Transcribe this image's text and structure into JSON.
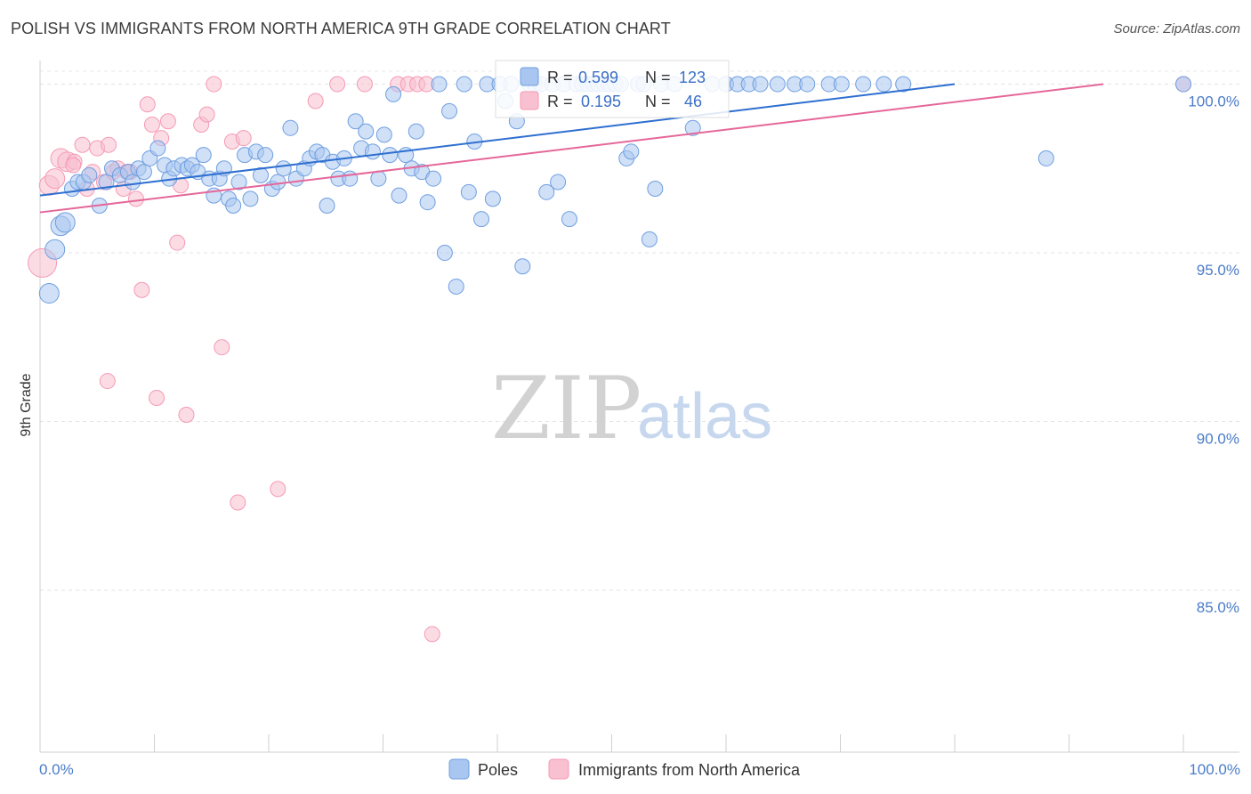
{
  "title": "POLISH VS IMMIGRANTS FROM NORTH AMERICA 9TH GRADE CORRELATION CHART",
  "source": "Source: ZipAtlas.com",
  "watermark": {
    "zip": "ZIP",
    "atlas": "atlas"
  },
  "colors": {
    "poles": "#6f9fe0",
    "immigrants": "#f59ab4",
    "poles_line": "#2e6fd0",
    "immigrants_line": "#e5679a",
    "axis_text": "#4a7cc9"
  },
  "stats": {
    "r_label": "R =",
    "n_label": "N =",
    "poles": {
      "r": "0.599",
      "n": "123"
    },
    "immigrants": {
      "r": "0.195",
      "n": "46"
    }
  },
  "chart_data": {
    "type": "scatter",
    "title": "POLISH VS IMMIGRANTS FROM NORTH AMERICA 9TH GRADE CORRELATION CHART",
    "ylabel": "9th Grade",
    "xlabel": "",
    "x_tick_labels": {
      "min": "0.0%",
      "max": "100.0%"
    },
    "y_tick_labels": [
      "100.0%",
      "95.0%",
      "90.0%",
      "85.0%"
    ],
    "y_ticks": [
      100,
      95,
      90,
      85
    ],
    "xlim": [
      0,
      100
    ],
    "ylim": [
      80.2,
      100.7
    ],
    "grid": true,
    "legend_placement": "bottom-center",
    "series": [
      {
        "name": "Poles",
        "trend": {
          "x0": 0,
          "y0": 96.7,
          "x1": 80,
          "y1": 100
        },
        "points": [
          [
            0.8,
            93.8
          ],
          [
            1.3,
            95.1
          ],
          [
            1.8,
            95.8
          ],
          [
            2.2,
            95.9
          ],
          [
            2.8,
            96.9
          ],
          [
            3.3,
            97.1
          ],
          [
            3.8,
            97.1
          ],
          [
            4.3,
            97.3
          ],
          [
            5.2,
            96.4
          ],
          [
            5.8,
            97.1
          ],
          [
            6.3,
            97.5
          ],
          [
            7.0,
            97.3
          ],
          [
            7.7,
            97.4
          ],
          [
            8.1,
            97.1
          ],
          [
            8.6,
            97.5
          ],
          [
            9.1,
            97.4
          ],
          [
            9.6,
            97.8
          ],
          [
            10.3,
            98.1
          ],
          [
            10.9,
            97.6
          ],
          [
            11.3,
            97.2
          ],
          [
            11.7,
            97.5
          ],
          [
            12.4,
            97.6
          ],
          [
            12.9,
            97.5
          ],
          [
            13.3,
            97.6
          ],
          [
            13.8,
            97.4
          ],
          [
            14.3,
            97.9
          ],
          [
            14.8,
            97.2
          ],
          [
            15.2,
            96.7
          ],
          [
            15.7,
            97.2
          ],
          [
            16.1,
            97.5
          ],
          [
            16.5,
            96.6
          ],
          [
            16.9,
            96.4
          ],
          [
            17.4,
            97.1
          ],
          [
            17.9,
            97.9
          ],
          [
            18.4,
            96.6
          ],
          [
            18.9,
            98.0
          ],
          [
            19.3,
            97.3
          ],
          [
            19.7,
            97.9
          ],
          [
            20.3,
            96.9
          ],
          [
            20.8,
            97.1
          ],
          [
            21.3,
            97.5
          ],
          [
            21.9,
            98.7
          ],
          [
            22.4,
            97.2
          ],
          [
            23.1,
            97.5
          ],
          [
            23.6,
            97.8
          ],
          [
            24.2,
            98.0
          ],
          [
            24.7,
            97.9
          ],
          [
            25.1,
            96.4
          ],
          [
            25.6,
            97.7
          ],
          [
            26.1,
            97.2
          ],
          [
            26.6,
            97.8
          ],
          [
            27.1,
            97.2
          ],
          [
            27.6,
            98.9
          ],
          [
            28.1,
            98.1
          ],
          [
            28.5,
            98.6
          ],
          [
            29.1,
            98.0
          ],
          [
            29.6,
            97.2
          ],
          [
            30.1,
            98.5
          ],
          [
            30.6,
            97.9
          ],
          [
            30.9,
            99.7
          ],
          [
            31.4,
            96.7
          ],
          [
            32.0,
            97.9
          ],
          [
            32.5,
            97.5
          ],
          [
            32.9,
            98.6
          ],
          [
            33.4,
            97.4
          ],
          [
            33.9,
            96.5
          ],
          [
            34.4,
            97.2
          ],
          [
            34.9,
            100.0
          ],
          [
            35.4,
            95.0
          ],
          [
            35.8,
            99.2
          ],
          [
            36.4,
            94.0
          ],
          [
            37.1,
            100.0
          ],
          [
            37.5,
            96.8
          ],
          [
            38.0,
            98.3
          ],
          [
            38.6,
            96.0
          ],
          [
            39.1,
            100.0
          ],
          [
            39.6,
            96.6
          ],
          [
            40.2,
            100.0
          ],
          [
            40.7,
            99.5
          ],
          [
            41.2,
            100.0
          ],
          [
            41.7,
            98.9
          ],
          [
            42.2,
            94.6
          ],
          [
            42.8,
            100.0
          ],
          [
            43.3,
            100.0
          ],
          [
            43.8,
            100.0
          ],
          [
            44.3,
            96.8
          ],
          [
            44.8,
            100.0
          ],
          [
            45.3,
            97.1
          ],
          [
            45.8,
            100.0
          ],
          [
            46.3,
            96.0
          ],
          [
            46.9,
            100.0
          ],
          [
            47.4,
            100.0
          ],
          [
            47.9,
            100.0
          ],
          [
            48.4,
            100.0
          ],
          [
            48.8,
            100.0
          ],
          [
            49.3,
            100.0
          ],
          [
            49.8,
            100.0
          ],
          [
            50.3,
            100.0
          ],
          [
            50.8,
            100.0
          ],
          [
            51.3,
            97.8
          ],
          [
            51.7,
            98.0
          ],
          [
            52.3,
            100.0
          ],
          [
            52.8,
            100.0
          ],
          [
            53.3,
            95.4
          ],
          [
            53.8,
            96.9
          ],
          [
            54.3,
            100.0
          ],
          [
            55.5,
            100.0
          ],
          [
            57.1,
            98.7
          ],
          [
            58.8,
            100.0
          ],
          [
            60.0,
            100.0
          ],
          [
            61.0,
            100.0
          ],
          [
            62.0,
            100.0
          ],
          [
            63.0,
            100.0
          ],
          [
            64.5,
            100.0
          ],
          [
            66.0,
            100.0
          ],
          [
            67.1,
            100.0
          ],
          [
            69.0,
            100.0
          ],
          [
            70.1,
            100.0
          ],
          [
            72.0,
            100.0
          ],
          [
            73.8,
            100.0
          ],
          [
            75.5,
            100.0
          ],
          [
            88.0,
            97.8
          ],
          [
            100.0,
            100.0
          ]
        ]
      },
      {
        "name": "Immigrants from North America",
        "trend": {
          "x0": 0,
          "y0": 96.2,
          "x1": 93,
          "y1": 100
        },
        "points": [
          [
            0.2,
            94.7
          ],
          [
            0.8,
            97.0
          ],
          [
            1.3,
            97.2
          ],
          [
            1.8,
            97.8
          ],
          [
            2.4,
            97.7
          ],
          [
            3.0,
            97.7
          ],
          [
            3.7,
            98.2
          ],
          [
            4.1,
            96.9
          ],
          [
            4.6,
            97.4
          ],
          [
            5.0,
            98.1
          ],
          [
            5.6,
            97.1
          ],
          [
            6.0,
            98.2
          ],
          [
            6.4,
            97.4
          ],
          [
            6.8,
            97.5
          ],
          [
            7.3,
            96.9
          ],
          [
            7.9,
            97.4
          ],
          [
            8.4,
            96.6
          ],
          [
            8.9,
            93.9
          ],
          [
            9.4,
            99.4
          ],
          [
            9.8,
            98.8
          ],
          [
            10.2,
            90.7
          ],
          [
            10.6,
            98.4
          ],
          [
            11.2,
            98.9
          ],
          [
            12.0,
            95.3
          ],
          [
            12.3,
            97.0
          ],
          [
            12.8,
            90.2
          ],
          [
            14.1,
            98.8
          ],
          [
            14.6,
            99.1
          ],
          [
            15.2,
            100.0
          ],
          [
            15.9,
            92.2
          ],
          [
            16.8,
            98.3
          ],
          [
            17.3,
            87.6
          ],
          [
            17.8,
            98.4
          ],
          [
            20.8,
            88.0
          ],
          [
            24.1,
            99.5
          ],
          [
            26.0,
            100.0
          ],
          [
            28.4,
            100.0
          ],
          [
            31.3,
            100.0
          ],
          [
            32.2,
            100.0
          ],
          [
            33.0,
            100.0
          ],
          [
            33.8,
            100.0
          ],
          [
            34.3,
            83.7
          ],
          [
            5.9,
            91.2
          ],
          [
            2.9,
            97.6
          ],
          [
            7.6,
            97.4
          ],
          [
            100.0,
            100.0
          ]
        ]
      }
    ]
  },
  "legend": {
    "poles": "Poles",
    "immigrants": "Immigrants from North America"
  }
}
